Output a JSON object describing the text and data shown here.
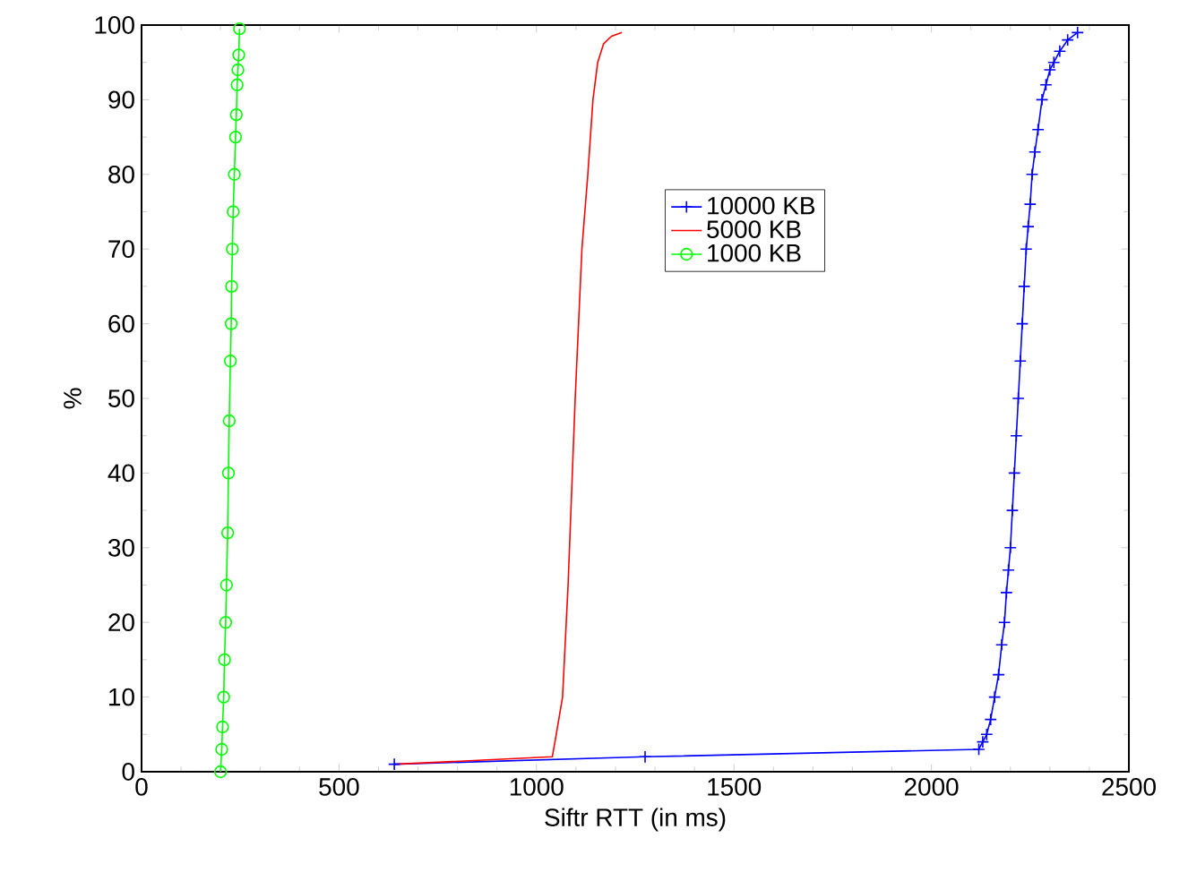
{
  "chart_data": {
    "type": "line",
    "xlabel": "Siftr RTT (in ms)",
    "ylabel": "%",
    "xlim": [
      0,
      2500
    ],
    "ylim": [
      0,
      100
    ],
    "xticks": [
      0,
      500,
      1000,
      1500,
      2000,
      2500
    ],
    "yticks": [
      0,
      10,
      20,
      30,
      40,
      50,
      60,
      70,
      80,
      90,
      100
    ],
    "grid": false,
    "legend": "right",
    "series": [
      {
        "name": "10000 KB",
        "color": "#0000ff",
        "marker": "cross",
        "x": [
          640,
          1275,
          2120,
          2130,
          2140,
          2150,
          2160,
          2170,
          2178,
          2185,
          2190,
          2195,
          2200,
          2205,
          2210,
          2215,
          2220,
          2225,
          2230,
          2235,
          2240,
          2245,
          2250,
          2255,
          2262,
          2270,
          2280,
          2290,
          2300,
          2310,
          2325,
          2345,
          2370
        ],
        "values": [
          1,
          2,
          3,
          4,
          5,
          7,
          10,
          13,
          17,
          20,
          24,
          27,
          30,
          35,
          40,
          45,
          50,
          55,
          60,
          65,
          70,
          73,
          76,
          80,
          83,
          86,
          90,
          92,
          94,
          95,
          96.5,
          98,
          99
        ]
      },
      {
        "name": "5000 KB",
        "color": "#ff0000",
        "marker": "none",
        "x": [
          640,
          1040,
          1050,
          1066,
          1080,
          1098,
          1115,
          1130,
          1143,
          1155,
          1170,
          1190,
          1216
        ],
        "values": [
          1,
          2,
          5,
          10,
          25,
          50,
          70,
          80,
          90,
          95,
          97.5,
          98.5,
          99
        ]
      },
      {
        "name": "1000 KB",
        "color": "#00ff00",
        "marker": "circle",
        "x": [
          200,
          203,
          205,
          208,
          210,
          213,
          215,
          218,
          220,
          222,
          225,
          227,
          228,
          230,
          232,
          235,
          238,
          240,
          242,
          244,
          246,
          248
        ],
        "values": [
          0,
          3,
          6,
          10,
          15,
          20,
          25,
          32,
          40,
          47,
          55,
          60,
          65,
          70,
          75,
          80,
          85,
          88,
          92,
          94,
          96,
          99.5
        ]
      }
    ]
  }
}
